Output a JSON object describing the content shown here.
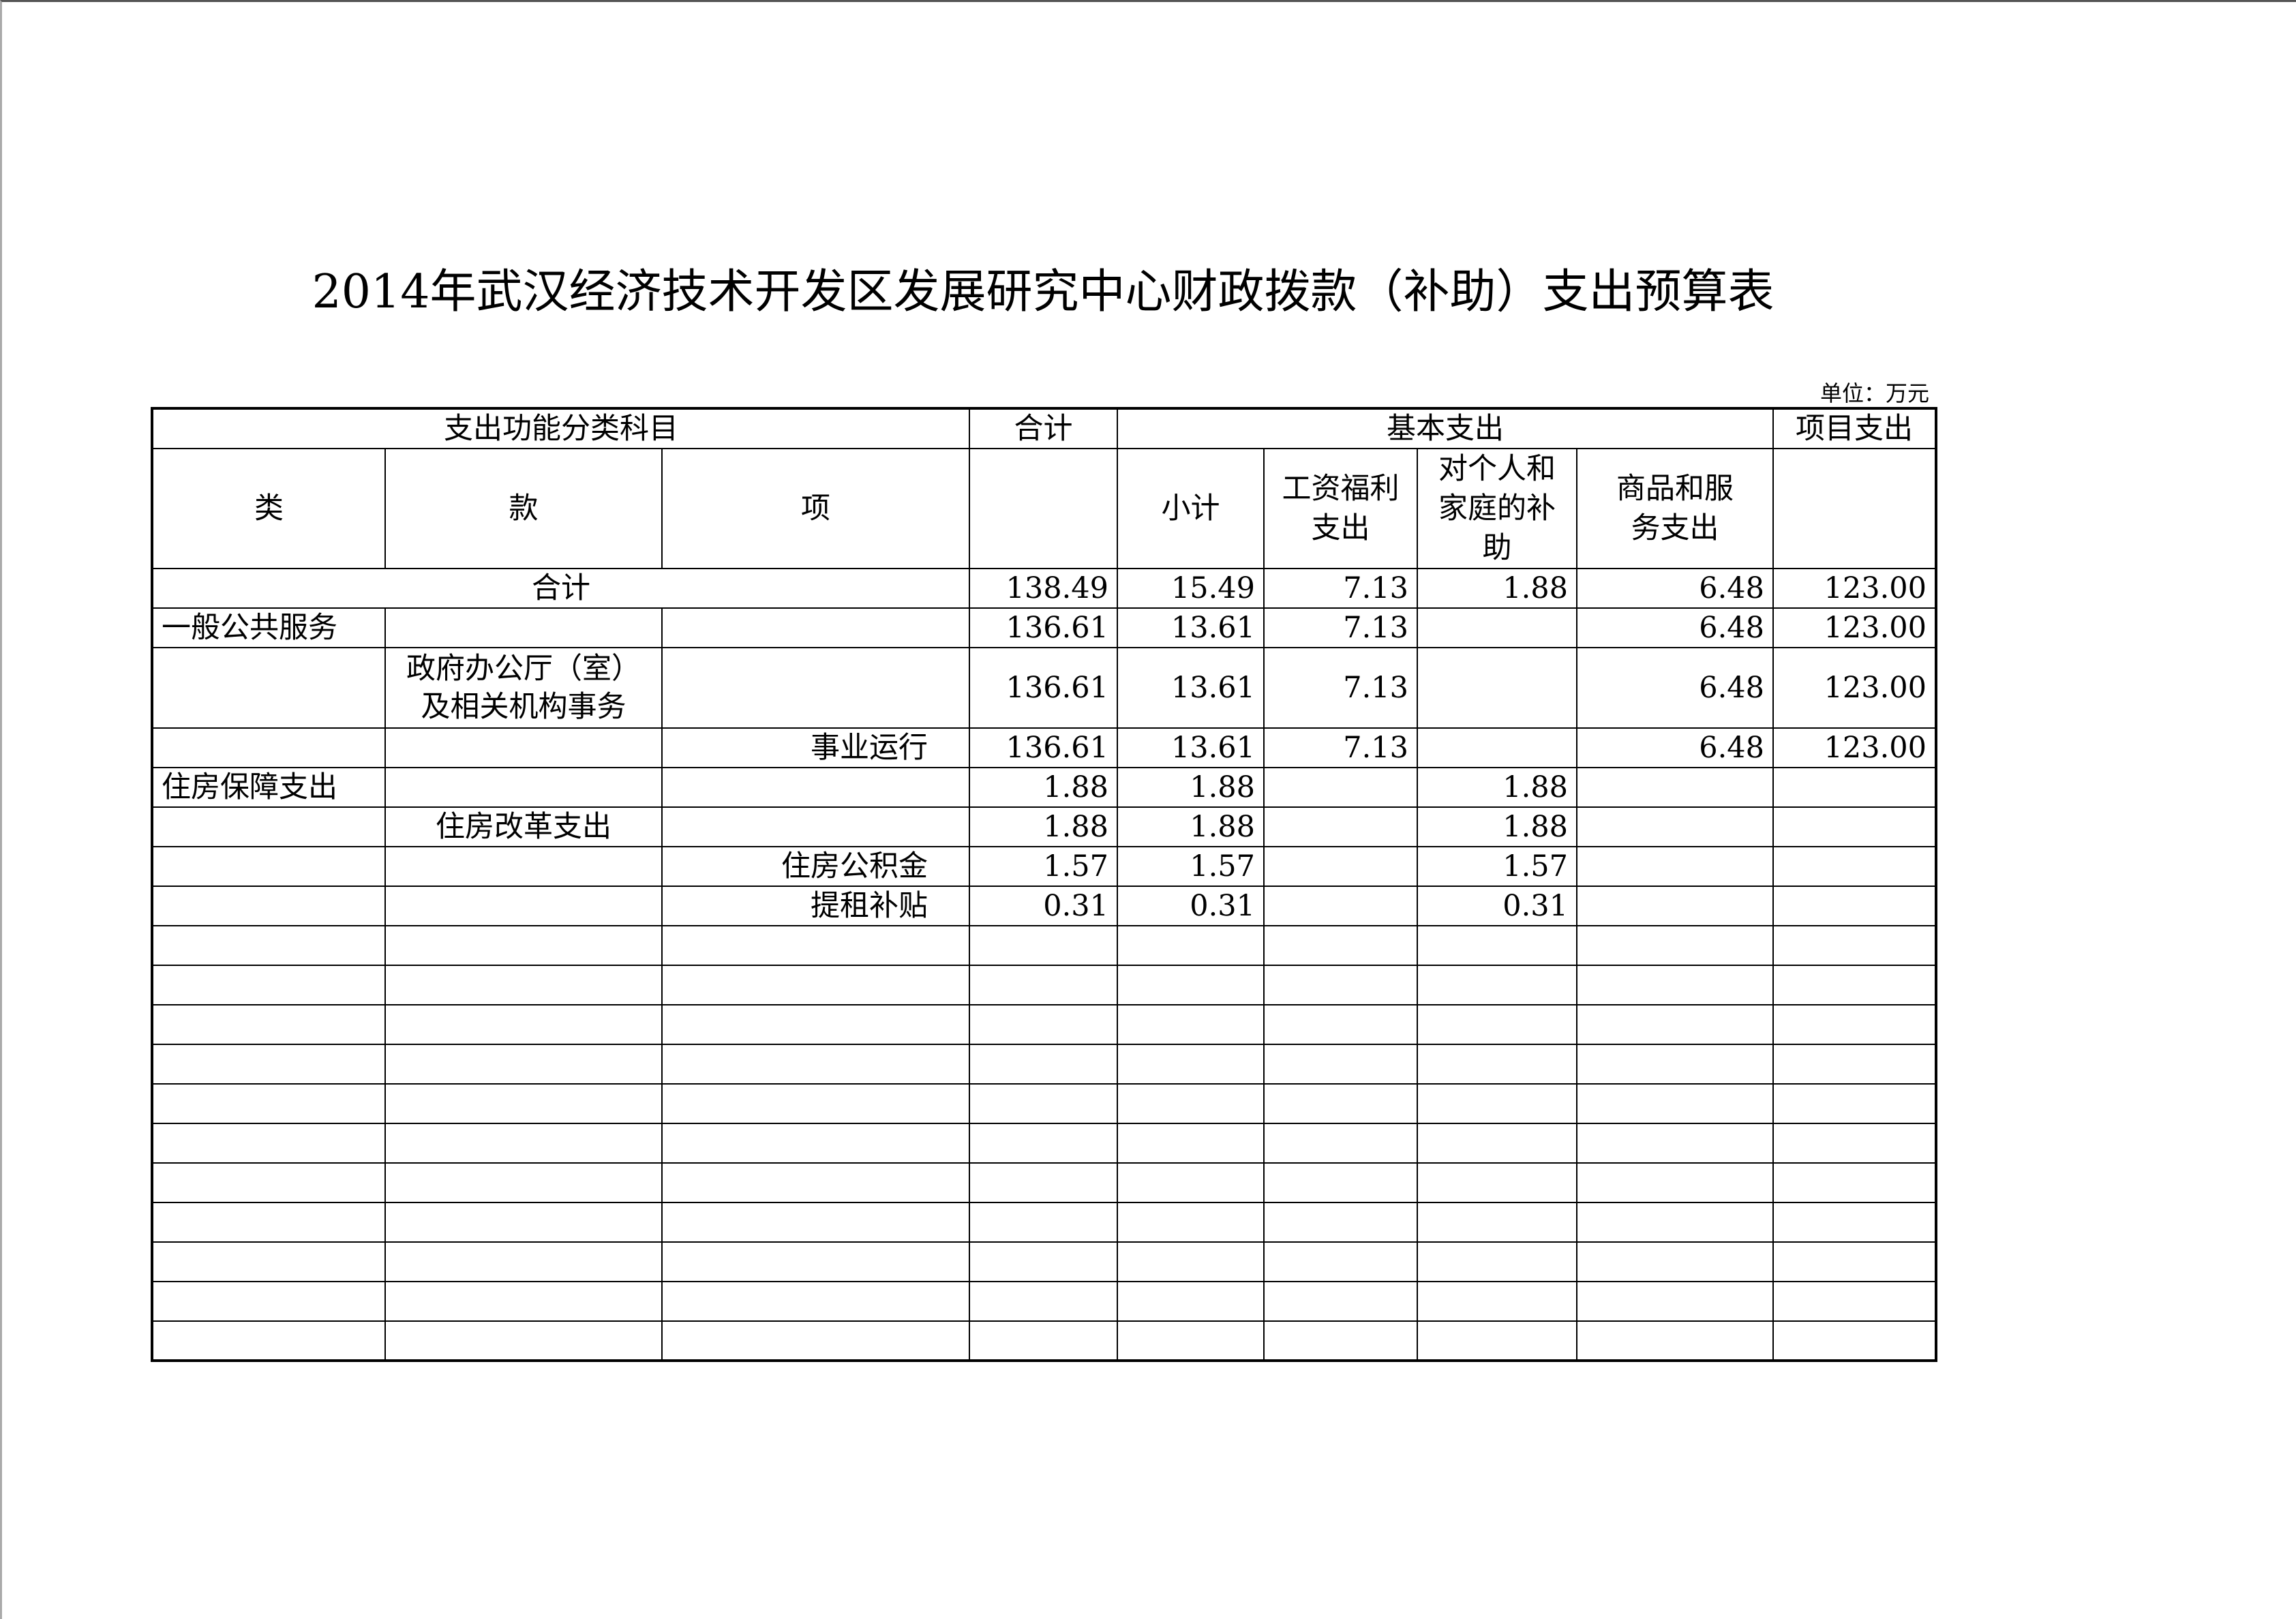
{
  "title": "2014年武汉经济技术开发区发展研究中心财政拨款（补助）支出预算表",
  "unit": "单位：万元",
  "header": {
    "category_group": "支出功能分类科目",
    "total": "合计",
    "basic_group": "基本支出",
    "project": "项目支出",
    "lei": "类",
    "kuan": "款",
    "xiang": "项",
    "subtotal": "小计",
    "wages": "工资福利支出",
    "personal": "对个人和家庭的补助",
    "goods": "商品和服务支出"
  },
  "total_row": {
    "label": "合计",
    "total": "138.49",
    "subtotal": "15.49",
    "wages": "7.13",
    "personal": "1.88",
    "goods": "6.48",
    "project": "123.00"
  },
  "rows": [
    {
      "lei": "一般公共服务",
      "kuan": "",
      "xiang": "",
      "total": "136.61",
      "subtotal": "13.61",
      "wages": "7.13",
      "personal": "",
      "goods": "6.48",
      "project": "123.00"
    },
    {
      "lei": "",
      "kuan": "政府办公厅（室）及相关机构事务",
      "xiang": "",
      "total": "136.61",
      "subtotal": "13.61",
      "wages": "7.13",
      "personal": "",
      "goods": "6.48",
      "project": "123.00"
    },
    {
      "lei": "",
      "kuan": "",
      "xiang": "事业运行",
      "total": "136.61",
      "subtotal": "13.61",
      "wages": "7.13",
      "personal": "",
      "goods": "6.48",
      "project": "123.00"
    },
    {
      "lei": "住房保障支出",
      "kuan": "",
      "xiang": "",
      "total": "1.88",
      "subtotal": "1.88",
      "wages": "",
      "personal": "1.88",
      "goods": "",
      "project": ""
    },
    {
      "lei": "",
      "kuan": "住房改革支出",
      "xiang": "",
      "total": "1.88",
      "subtotal": "1.88",
      "wages": "",
      "personal": "1.88",
      "goods": "",
      "project": ""
    },
    {
      "lei": "",
      "kuan": "",
      "xiang": "住房公积金",
      "total": "1.57",
      "subtotal": "1.57",
      "wages": "",
      "personal": "1.57",
      "goods": "",
      "project": ""
    },
    {
      "lei": "",
      "kuan": "",
      "xiang": "提租补贴",
      "total": "0.31",
      "subtotal": "0.31",
      "wages": "",
      "personal": "0.31",
      "goods": "",
      "project": ""
    },
    {},
    {},
    {},
    {},
    {},
    {},
    {},
    {},
    {},
    {},
    {}
  ]
}
